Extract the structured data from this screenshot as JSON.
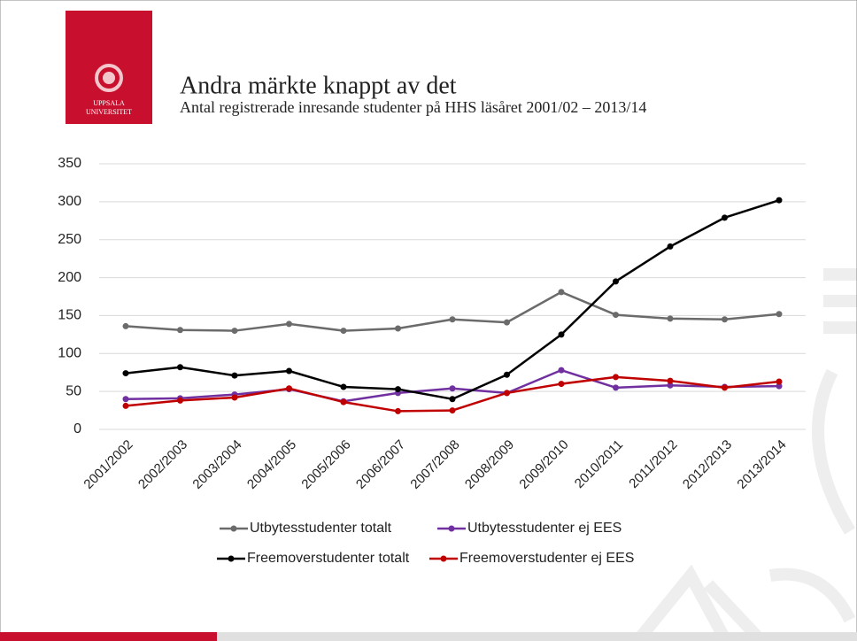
{
  "logo": {
    "line1": "UPPSALA",
    "line2": "UNIVERSITET"
  },
  "chart_data": {
    "type": "line",
    "title": "Andra märkte knappt av det",
    "subtitle": "Antal registrerade inresande studenter på HHS läsåret 2001/02 – 2013/14",
    "categories": [
      "2001/2002",
      "2002/2003",
      "2003/2004",
      "2004/2005",
      "2005/2006",
      "2006/2007",
      "2007/2008",
      "2008/2009",
      "2009/2010",
      "2010/2011",
      "2011/2012",
      "2012/2013",
      "2013/2014"
    ],
    "series": [
      {
        "name": "Utbytesstudenter totalt",
        "color": "#6b6b6b",
        "values": [
          136,
          131,
          130,
          139,
          130,
          133,
          145,
          141,
          181,
          151,
          146,
          145,
          152
        ]
      },
      {
        "name": "Utbytesstudenter ej EES",
        "color": "#7030a0",
        "values": [
          40,
          41,
          46,
          53,
          37,
          48,
          54,
          48,
          78,
          55,
          58,
          56,
          57
        ]
      },
      {
        "name": "Freemoverstudenter totalt",
        "color": "#000000",
        "values": [
          74,
          82,
          71,
          77,
          56,
          53,
          40,
          72,
          125,
          195,
          241,
          279,
          302
        ]
      },
      {
        "name": "Freemoverstudenter ej EES",
        "color": "#c00000",
        "values": [
          31,
          38,
          42,
          54,
          36,
          24,
          25,
          48,
          60,
          69,
          64,
          55,
          63
        ]
      }
    ],
    "ylim": [
      0,
      350
    ],
    "yticks": [
      0,
      50,
      100,
      150,
      200,
      250,
      300,
      350
    ],
    "grid": true,
    "legend": "bottom"
  }
}
